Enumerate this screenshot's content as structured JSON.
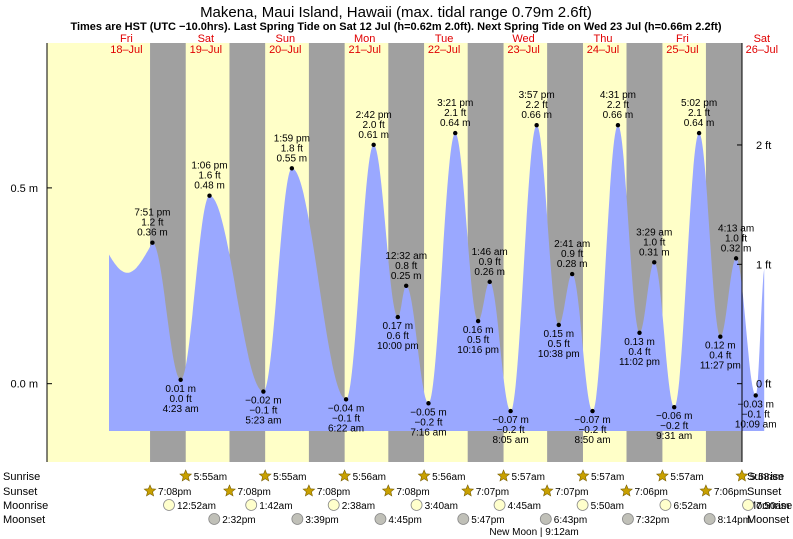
{
  "chart_data": {
    "type": "area",
    "title": "Makena, Maui Island, Hawaii (max. tidal range 0.79m 2.6ft)",
    "subtitle": "Times are HST (UTC −10.0hrs). Last Spring Tide on Sat 12 Jul (h=0.62m 2.0ft). Next Spring Tide on Wed 23 Jul (h=0.66m 2.2ft)",
    "days": [
      {
        "dow": "Fri",
        "date": "18–Jul"
      },
      {
        "dow": "Sat",
        "date": "19–Jul"
      },
      {
        "dow": "Sun",
        "date": "20–Jul"
      },
      {
        "dow": "Mon",
        "date": "21–Jul"
      },
      {
        "dow": "Tue",
        "date": "22–Jul"
      },
      {
        "dow": "Wed",
        "date": "23–Jul"
      },
      {
        "dow": "Thu",
        "date": "24–Jul"
      },
      {
        "dow": "Fri",
        "date": "25–Jul"
      },
      {
        "dow": "Sat",
        "date": "26–Jul"
      }
    ],
    "x_range_days": [
      17.5,
      26.25
    ],
    "ylim_m": [
      -0.2,
      0.87
    ],
    "yticks_left": [
      {
        "label": "0.0 m",
        "value": 0
      },
      {
        "label": "0.5 m",
        "value": 0.5
      }
    ],
    "yticks_right": [
      {
        "label": "0 ft",
        "value": 0
      },
      {
        "label": "1 ft",
        "value": 0.3048
      },
      {
        "label": "2 ft",
        "value": 0.6096
      }
    ],
    "tides": [
      {
        "day": 18,
        "time": "7:51 pm",
        "m": "0.36 m",
        "ft": "1.2 ft",
        "height": 0.36,
        "type": "high"
      },
      {
        "day": 19,
        "time": "4:23 am",
        "m": "0.01 m",
        "ft": "0.0 ft",
        "height": 0.01,
        "type": "low"
      },
      {
        "day": 19,
        "time": "1:06 pm",
        "m": "0.48 m",
        "ft": "1.6 ft",
        "height": 0.48,
        "type": "high"
      },
      {
        "day": 20,
        "time": "5:23 am",
        "m": "−0.02 m",
        "ft": "−0.1 ft",
        "height": -0.02,
        "type": "low"
      },
      {
        "day": 20,
        "time": "1:59 pm",
        "m": "0.55 m",
        "ft": "1.8 ft",
        "height": 0.55,
        "type": "high"
      },
      {
        "day": 21,
        "time": "6:22 am",
        "m": "−0.04 m",
        "ft": "−0.1 ft",
        "height": -0.04,
        "type": "low"
      },
      {
        "day": 21,
        "time": "2:42 pm",
        "m": "0.61 m",
        "ft": "2.0 ft",
        "height": 0.61,
        "type": "high"
      },
      {
        "day": 21,
        "time": "10:00 pm",
        "m": "0.17 m",
        "ft": "0.6 ft",
        "height": 0.17,
        "type": "low"
      },
      {
        "day": 22,
        "time": "12:32 am",
        "m": "0.25 m",
        "ft": "0.8 ft",
        "height": 0.25,
        "type": "high"
      },
      {
        "day": 22,
        "time": "7:16 am",
        "m": "−0.05 m",
        "ft": "−0.2 ft",
        "height": -0.05,
        "type": "low"
      },
      {
        "day": 22,
        "time": "3:21 pm",
        "m": "0.64 m",
        "ft": "2.1 ft",
        "height": 0.64,
        "type": "high"
      },
      {
        "day": 22,
        "time": "10:16 pm",
        "m": "0.16 m",
        "ft": "0.5 ft",
        "height": 0.16,
        "type": "low"
      },
      {
        "day": 23,
        "time": "1:46 am",
        "m": "0.26 m",
        "ft": "0.9 ft",
        "height": 0.26,
        "type": "high"
      },
      {
        "day": 23,
        "time": "8:05 am",
        "m": "−0.07 m",
        "ft": "−0.2 ft",
        "height": -0.07,
        "type": "low"
      },
      {
        "day": 23,
        "time": "3:57 pm",
        "m": "0.66 m",
        "ft": "2.2 ft",
        "height": 0.66,
        "type": "high"
      },
      {
        "day": 23,
        "time": "10:38 pm",
        "m": "0.15 m",
        "ft": "0.5 ft",
        "height": 0.15,
        "type": "low"
      },
      {
        "day": 24,
        "time": "2:41 am",
        "m": "0.28 m",
        "ft": "0.9 ft",
        "height": 0.28,
        "type": "high"
      },
      {
        "day": 24,
        "time": "8:50 am",
        "m": "−0.07 m",
        "ft": "−0.2 ft",
        "height": -0.07,
        "type": "low"
      },
      {
        "day": 24,
        "time": "4:31 pm",
        "m": "0.66 m",
        "ft": "2.2 ft",
        "height": 0.66,
        "type": "high"
      },
      {
        "day": 24,
        "time": "11:02 pm",
        "m": "0.13 m",
        "ft": "0.4 ft",
        "height": 0.13,
        "type": "low"
      },
      {
        "day": 25,
        "time": "3:29 am",
        "m": "0.31 m",
        "ft": "1.0 ft",
        "height": 0.31,
        "type": "high"
      },
      {
        "day": 25,
        "time": "9:31 am",
        "m": "−0.06 m",
        "ft": "−0.2 ft",
        "height": -0.06,
        "type": "low"
      },
      {
        "day": 25,
        "time": "5:02 pm",
        "m": "0.64 m",
        "ft": "2.1 ft",
        "height": 0.64,
        "type": "high"
      },
      {
        "day": 25,
        "time": "11:27 pm",
        "m": "0.12 m",
        "ft": "0.4 ft",
        "height": 0.12,
        "type": "low"
      },
      {
        "day": 26,
        "time": "4:13 am",
        "m": "0.32 m",
        "ft": "1.0 ft",
        "height": 0.32,
        "type": "high"
      },
      {
        "day": 26,
        "time": "10:09 am",
        "m": "−0.03 m",
        "ft": "−0.1 ft",
        "height": -0.03,
        "type": "low"
      }
    ],
    "row_labels": [
      "Sunrise",
      "Sunset",
      "Moonrise",
      "Moonset"
    ],
    "sun": [
      {
        "day": 18,
        "sunset": "7:08pm"
      },
      {
        "day": 19,
        "sunrise": "5:55am",
        "sunset": "7:08pm"
      },
      {
        "day": 20,
        "sunrise": "5:55am",
        "sunset": "7:08pm"
      },
      {
        "day": 21,
        "sunrise": "5:56am",
        "sunset": "7:08pm"
      },
      {
        "day": 22,
        "sunrise": "5:56am",
        "sunset": "7:07pm"
      },
      {
        "day": 23,
        "sunrise": "5:57am",
        "sunset": "7:07pm"
      },
      {
        "day": 24,
        "sunrise": "5:57am",
        "sunset": "7:06pm"
      },
      {
        "day": 25,
        "sunrise": "5:57am",
        "sunset": "7:06pm"
      },
      {
        "day": 26,
        "sunrise": "5:58am"
      }
    ],
    "moon": [
      {
        "day": 19,
        "moonrise": "12:52am",
        "moonset": "2:32pm"
      },
      {
        "day": 20,
        "moonrise": "1:42am",
        "moonset": "3:39pm"
      },
      {
        "day": 21,
        "moonrise": "2:38am",
        "moonset": "4:45pm"
      },
      {
        "day": 22,
        "moonrise": "3:40am",
        "moonset": "5:47pm"
      },
      {
        "day": 23,
        "moonrise": "4:45am",
        "moonset": "6:43pm"
      },
      {
        "day": 24,
        "moonrise": "5:50am",
        "moonset": "7:32pm"
      },
      {
        "day": 25,
        "moonrise": "6:52am",
        "moonset": "8:14pm"
      },
      {
        "day": 26,
        "moonrise": "7:50am"
      }
    ],
    "moon_phase": "New Moon | 9:12am",
    "colors": {
      "day_band": "#ffffc8",
      "night_band": "#a0a0a0",
      "water": "#9aa8ff",
      "day_label": "#e00000",
      "sun_icon": "#c8a000",
      "moon_icon": "#ffffcc"
    }
  }
}
